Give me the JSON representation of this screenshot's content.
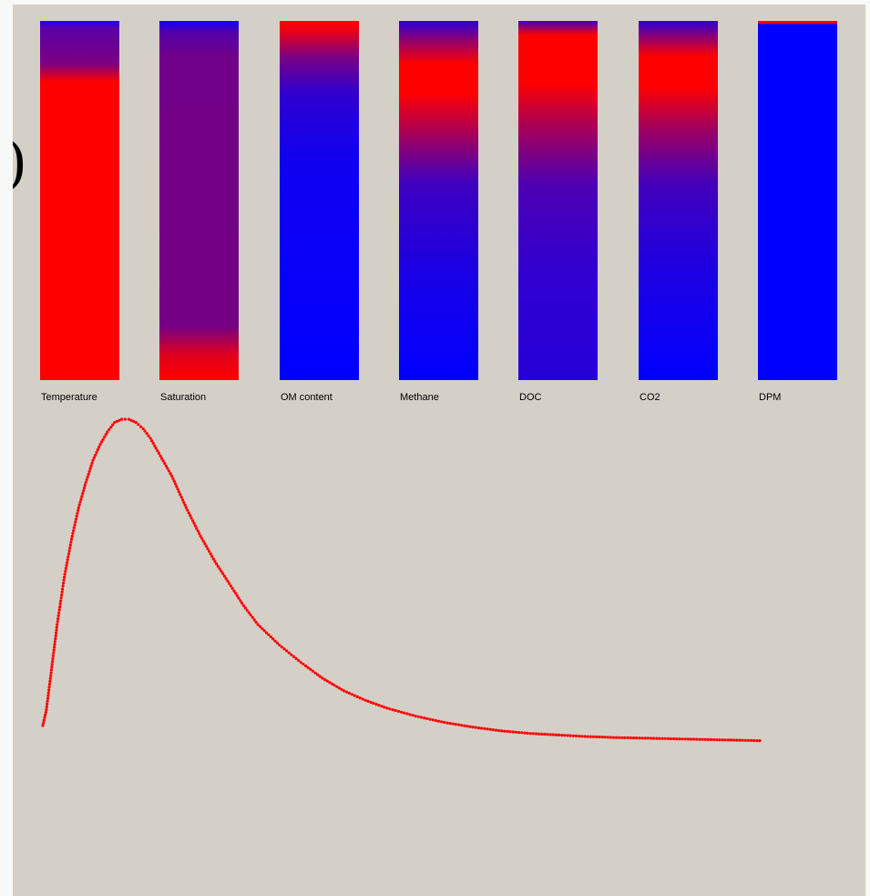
{
  "bars": [
    {
      "id": "temperature",
      "label": "Temperature",
      "stops": [
        [
          0,
          "#1a00ff"
        ],
        [
          2,
          "#5a00a8"
        ],
        [
          12,
          "#7d0080"
        ],
        [
          17,
          "#ff0000"
        ],
        [
          100,
          "#ff0000"
        ]
      ]
    },
    {
      "id": "saturation",
      "label": "Saturation",
      "stops": [
        [
          0,
          "#1000ff"
        ],
        [
          3,
          "#5200ab"
        ],
        [
          10,
          "#700088"
        ],
        [
          85,
          "#740084"
        ],
        [
          93,
          "#e0001e"
        ],
        [
          100,
          "#ff0000"
        ]
      ]
    },
    {
      "id": "om-content",
      "label": "OM content",
      "stops": [
        [
          0,
          "#ff0000"
        ],
        [
          3,
          "#e8001a"
        ],
        [
          10,
          "#7a0084"
        ],
        [
          20,
          "#3000cf"
        ],
        [
          38,
          "#1000ef"
        ],
        [
          100,
          "#0000ff"
        ]
      ]
    },
    {
      "id": "methane",
      "label": "Methane",
      "stops": [
        [
          0,
          "#2a00d8"
        ],
        [
          6,
          "#9a0066"
        ],
        [
          12,
          "#ff0000"
        ],
        [
          20,
          "#ff0000"
        ],
        [
          30,
          "#b0004f"
        ],
        [
          45,
          "#4000bf"
        ],
        [
          70,
          "#1a00e5"
        ],
        [
          100,
          "#0000ff"
        ]
      ]
    },
    {
      "id": "doc",
      "label": "DOC",
      "stops": [
        [
          0,
          "#3f00c0"
        ],
        [
          4,
          "#ff0000"
        ],
        [
          17,
          "#ff0000"
        ],
        [
          28,
          "#b0004f"
        ],
        [
          45,
          "#4f00b0"
        ],
        [
          70,
          "#3000cf"
        ],
        [
          100,
          "#2600d9"
        ]
      ]
    },
    {
      "id": "co2",
      "label": "CO2",
      "stops": [
        [
          0,
          "#2a00d8"
        ],
        [
          5,
          "#9a0066"
        ],
        [
          10,
          "#ff0000"
        ],
        [
          18,
          "#ff0000"
        ],
        [
          30,
          "#a0005f"
        ],
        [
          45,
          "#4500ba"
        ],
        [
          65,
          "#2200dd"
        ],
        [
          100,
          "#0000ff"
        ]
      ]
    },
    {
      "id": "dpm",
      "label": "DPM",
      "stops": [
        [
          0,
          "#ff0000"
        ],
        [
          0.6,
          "#ff0000"
        ],
        [
          1,
          "#0000ff"
        ],
        [
          100,
          "#0000ff"
        ]
      ]
    }
  ],
  "curve": {
    "color": "#ff0000",
    "points": [
      [
        0,
        0.03
      ],
      [
        0.005,
        0.08
      ],
      [
        0.01,
        0.17
      ],
      [
        0.015,
        0.26
      ],
      [
        0.02,
        0.35
      ],
      [
        0.03,
        0.5
      ],
      [
        0.04,
        0.62
      ],
      [
        0.05,
        0.72
      ],
      [
        0.06,
        0.8
      ],
      [
        0.07,
        0.87
      ],
      [
        0.08,
        0.92
      ],
      [
        0.09,
        0.96
      ],
      [
        0.1,
        0.99
      ],
      [
        0.11,
        1.0
      ],
      [
        0.12,
        1.0
      ],
      [
        0.13,
        0.99
      ],
      [
        0.14,
        0.97
      ],
      [
        0.15,
        0.94
      ],
      [
        0.16,
        0.9
      ],
      [
        0.17,
        0.86
      ],
      [
        0.18,
        0.82
      ],
      [
        0.19,
        0.77
      ],
      [
        0.2,
        0.72
      ],
      [
        0.22,
        0.63
      ],
      [
        0.24,
        0.55
      ],
      [
        0.26,
        0.48
      ],
      [
        0.28,
        0.41
      ],
      [
        0.3,
        0.35
      ],
      [
        0.33,
        0.285
      ],
      [
        0.36,
        0.23
      ],
      [
        0.39,
        0.18
      ],
      [
        0.42,
        0.14
      ],
      [
        0.45,
        0.11
      ],
      [
        0.48,
        0.085
      ],
      [
        0.52,
        0.06
      ],
      [
        0.56,
        0.04
      ],
      [
        0.6,
        0.025
      ],
      [
        0.64,
        0.013
      ],
      [
        0.68,
        0.005
      ],
      [
        0.72,
        0.0
      ],
      [
        0.76,
        -0.005
      ],
      [
        0.8,
        -0.008
      ],
      [
        0.84,
        -0.01
      ],
      [
        0.88,
        -0.012
      ],
      [
        0.92,
        -0.014
      ],
      [
        0.96,
        -0.016
      ],
      [
        1.0,
        -0.018
      ]
    ]
  }
}
